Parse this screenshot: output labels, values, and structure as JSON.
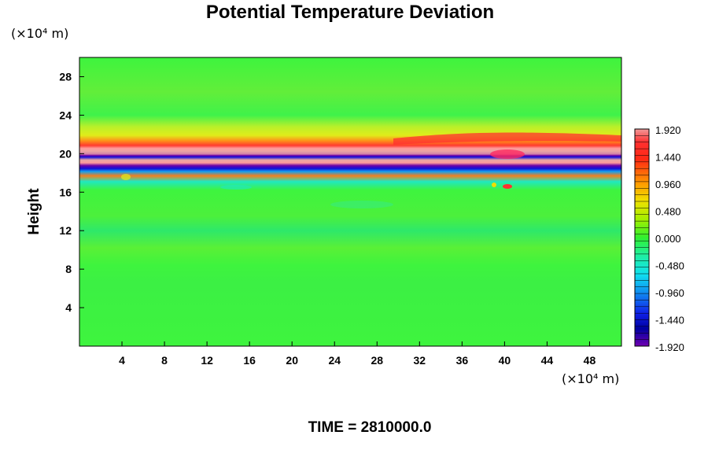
{
  "chart_data": {
    "type": "heatmap",
    "title": "Potential Temperature Deviation",
    "ylabel": "Height",
    "xlabel": "",
    "x_unit": "(×10⁴ m)",
    "y_unit": "(×10⁴ m)",
    "footer": "TIME = 2810000.0",
    "x_ticks": [
      4,
      8,
      12,
      16,
      20,
      24,
      28,
      32,
      36,
      40,
      44,
      48
    ],
    "y_ticks": [
      4,
      8,
      12,
      16,
      20,
      24,
      28
    ],
    "xlim": [
      0,
      51
    ],
    "ylim": [
      0,
      30
    ],
    "colorbar": {
      "labels": [
        "1.920",
        "1.440",
        "0.960",
        "0.480",
        "0.000",
        "-0.480",
        "-0.960",
        "-1.440",
        "-1.920"
      ],
      "min": -1.92,
      "max": 1.92,
      "levels": 33
    },
    "field_description_values": {
      "background": 0.0,
      "band_center_height": 20.3,
      "band_max": 1.92,
      "band_min": -1.92
    }
  }
}
